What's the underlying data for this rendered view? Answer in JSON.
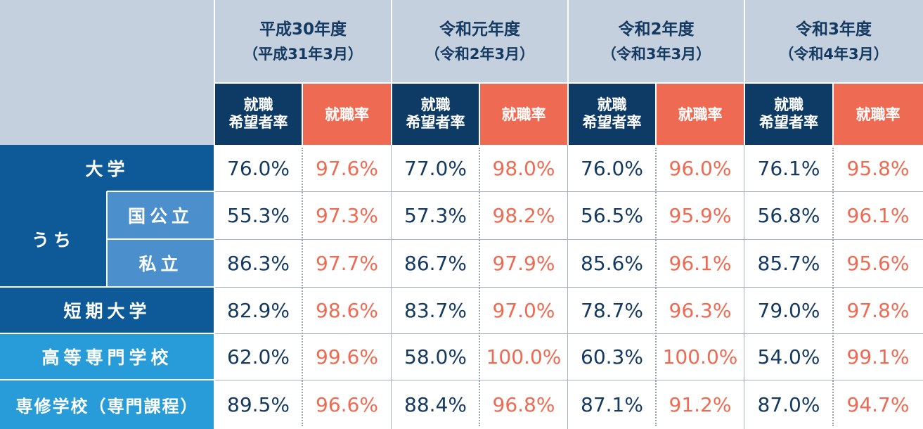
{
  "chart_data": {
    "type": "table",
    "years": [
      {
        "label": "平成30年度",
        "sub": "（平成31年3月）"
      },
      {
        "label": "令和元年度",
        "sub": "（令和2年3月）"
      },
      {
        "label": "令和2年度",
        "sub": "（令和3年3月）"
      },
      {
        "label": "令和3年度",
        "sub": "（令和4年3月）"
      }
    ],
    "sub_headers": {
      "desire": "就職\n希望者率",
      "rate": "就職率"
    },
    "row_labels": {
      "university": "大学",
      "of_which": "うち",
      "national_public": "国公立",
      "private": "私立",
      "junior_college": "短期大学",
      "technical_college": "高等専門学校",
      "vocational_school": "専修学校（専門課程）"
    },
    "rows": [
      {
        "key": "university",
        "values": [
          [
            "76.0%",
            "97.6%"
          ],
          [
            "77.0%",
            "98.0%"
          ],
          [
            "76.0%",
            "96.0%"
          ],
          [
            "76.1%",
            "95.8%"
          ]
        ]
      },
      {
        "key": "national_public",
        "values": [
          [
            "55.3%",
            "97.3%"
          ],
          [
            "57.3%",
            "98.2%"
          ],
          [
            "56.5%",
            "95.9%"
          ],
          [
            "56.8%",
            "96.1%"
          ]
        ]
      },
      {
        "key": "private",
        "values": [
          [
            "86.3%",
            "97.7%"
          ],
          [
            "86.7%",
            "97.9%"
          ],
          [
            "85.6%",
            "96.1%"
          ],
          [
            "85.7%",
            "95.6%"
          ]
        ]
      },
      {
        "key": "junior_college",
        "values": [
          [
            "82.9%",
            "98.6%"
          ],
          [
            "83.7%",
            "97.0%"
          ],
          [
            "78.7%",
            "96.3%"
          ],
          [
            "79.0%",
            "97.8%"
          ]
        ]
      },
      {
        "key": "technical_college",
        "values": [
          [
            "62.0%",
            "99.6%"
          ],
          [
            "58.0%",
            "100.0%"
          ],
          [
            "60.3%",
            "100.0%"
          ],
          [
            "54.0%",
            "99.1%"
          ]
        ]
      },
      {
        "key": "vocational_school",
        "values": [
          [
            "89.5%",
            "96.6%"
          ],
          [
            "88.4%",
            "96.8%"
          ],
          [
            "87.1%",
            "91.2%"
          ],
          [
            "87.0%",
            "94.7%"
          ]
        ]
      }
    ]
  },
  "colors": {
    "header_bg": "#c5d0de",
    "header_text": "#143a61",
    "desire_bg": "#0e3b66",
    "rate_bg": "#ee6a52",
    "desire_text": "#143a61",
    "rate_text": "#ee6a52",
    "rowhead_dark": "#0e5a99",
    "rowhead_mid": "#4c8fcd",
    "rowhead_light": "#279cd8"
  }
}
